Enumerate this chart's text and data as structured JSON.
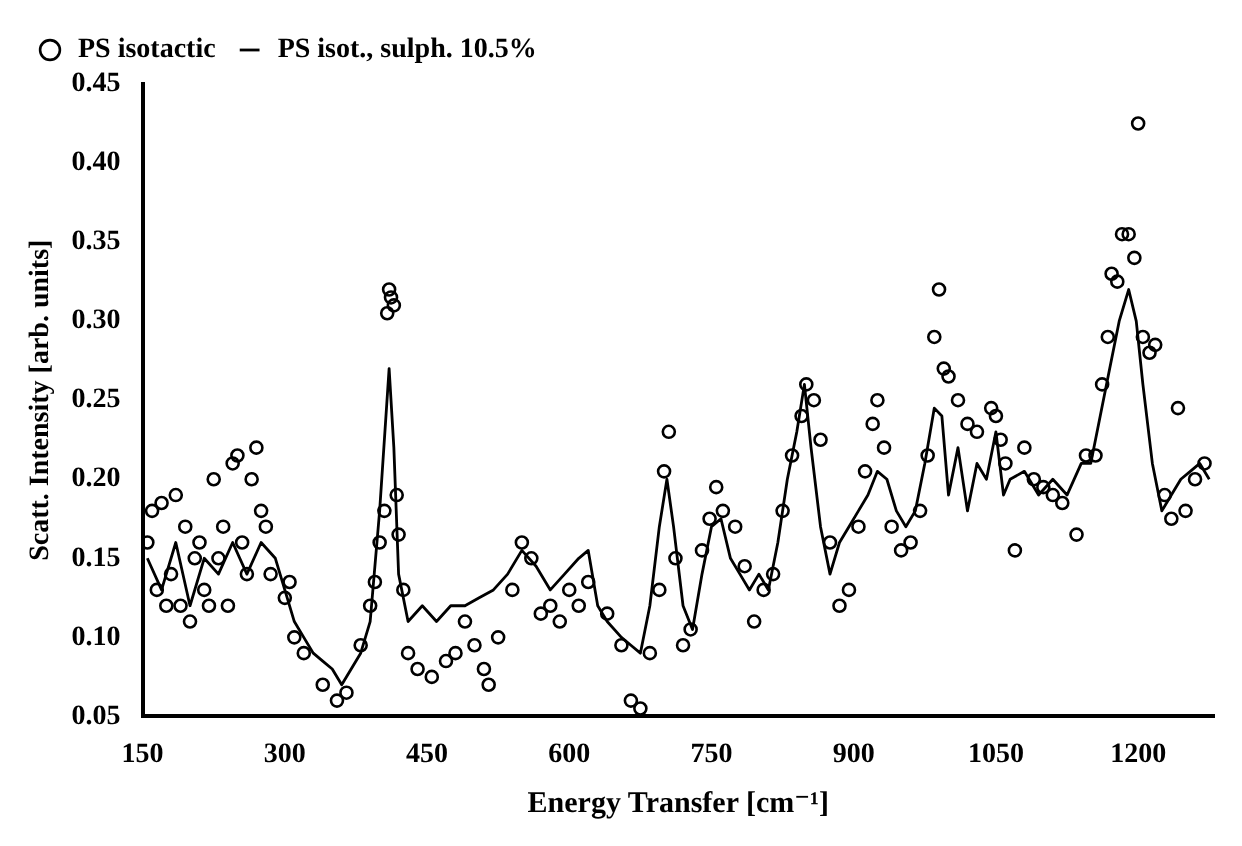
{
  "chart_data": {
    "type": "scatter",
    "xlabel": "Energy Transfer [cm⁻¹]",
    "ylabel": "Scatt. Intensity [arb. units]",
    "xlim": [
      150,
      1280
    ],
    "xticks": [
      150,
      300,
      450,
      600,
      750,
      900,
      1050,
      1200
    ],
    "ylim": [
      0.05,
      0.45
    ],
    "yticks": [
      0.05,
      {
        "value": 0.1,
        "label": "0.10"
      },
      0.15,
      {
        "value": 0.2,
        "label": "0.20"
      },
      0.25,
      {
        "value": 0.3,
        "label": "0.30"
      },
      0.35,
      {
        "value": 0.4,
        "label": "0.40"
      },
      0.45
    ],
    "legend": "top left",
    "grid": false,
    "series": [
      {
        "name": "PS isotactic",
        "marker": "circle",
        "color": "#000000",
        "x": [
          155,
          160,
          165,
          170,
          175,
          180,
          185,
          190,
          195,
          200,
          205,
          210,
          215,
          220,
          225,
          230,
          235,
          240,
          245,
          250,
          255,
          260,
          265,
          270,
          275,
          280,
          285,
          300,
          305,
          310,
          320,
          340,
          355,
          365,
          380,
          390,
          395,
          400,
          405,
          408,
          410,
          412,
          415,
          418,
          420,
          425,
          430,
          440,
          455,
          470,
          480,
          490,
          500,
          510,
          515,
          525,
          540,
          550,
          560,
          570,
          580,
          590,
          600,
          610,
          620,
          640,
          655,
          665,
          675,
          685,
          695,
          700,
          705,
          712,
          720,
          728,
          740,
          748,
          755,
          762,
          775,
          785,
          795,
          805,
          815,
          825,
          835,
          845,
          850,
          858,
          865,
          875,
          885,
          895,
          905,
          912,
          920,
          925,
          932,
          940,
          950,
          960,
          970,
          978,
          985,
          990,
          995,
          1000,
          1010,
          1020,
          1030,
          1045,
          1050,
          1055,
          1060,
          1070,
          1080,
          1090,
          1100,
          1110,
          1120,
          1135,
          1145,
          1155,
          1162,
          1168,
          1172,
          1178,
          1183,
          1190,
          1196,
          1200,
          1205,
          1212,
          1218,
          1228,
          1235,
          1242,
          1250,
          1260,
          1270
        ],
        "values": [
          0.16,
          0.18,
          0.13,
          0.185,
          0.12,
          0.14,
          0.19,
          0.12,
          0.17,
          0.11,
          0.15,
          0.16,
          0.13,
          0.12,
          0.2,
          0.15,
          0.17,
          0.12,
          0.21,
          0.215,
          0.16,
          0.14,
          0.2,
          0.22,
          0.18,
          0.17,
          0.14,
          0.125,
          0.135,
          0.1,
          0.09,
          0.07,
          0.06,
          0.065,
          0.095,
          0.12,
          0.135,
          0.16,
          0.18,
          0.305,
          0.32,
          0.315,
          0.31,
          0.19,
          0.165,
          0.13,
          0.09,
          0.08,
          0.075,
          0.085,
          0.09,
          0.11,
          0.095,
          0.08,
          0.07,
          0.1,
          0.13,
          0.16,
          0.15,
          0.115,
          0.12,
          0.11,
          0.13,
          0.12,
          0.135,
          0.115,
          0.095,
          0.06,
          0.055,
          0.09,
          0.13,
          0.205,
          0.23,
          0.15,
          0.095,
          0.105,
          0.155,
          0.175,
          0.195,
          0.18,
          0.17,
          0.145,
          0.11,
          0.13,
          0.14,
          0.18,
          0.215,
          0.24,
          0.26,
          0.25,
          0.225,
          0.16,
          0.12,
          0.13,
          0.17,
          0.205,
          0.235,
          0.25,
          0.22,
          0.17,
          0.155,
          0.16,
          0.18,
          0.215,
          0.29,
          0.32,
          0.27,
          0.265,
          0.25,
          0.235,
          0.23,
          0.245,
          0.24,
          0.225,
          0.21,
          0.155,
          0.22,
          0.2,
          0.195,
          0.19,
          0.185,
          0.165,
          0.215,
          0.215,
          0.26,
          0.29,
          0.33,
          0.325,
          0.355,
          0.355,
          0.34,
          0.425,
          0.29,
          0.28,
          0.285,
          0.19,
          0.175,
          0.245,
          0.18,
          0.2,
          0.21
        ]
      },
      {
        "name": "PS isot., sulph. 10.5%",
        "type": "line",
        "marker": "none",
        "line_style": "solid",
        "color": "#000000",
        "x": [
          155,
          170,
          185,
          200,
          215,
          230,
          245,
          260,
          275,
          290,
          300,
          310,
          320,
          330,
          340,
          350,
          360,
          370,
          380,
          390,
          400,
          410,
          415,
          420,
          430,
          445,
          460,
          475,
          490,
          505,
          520,
          535,
          550,
          565,
          580,
          595,
          610,
          620,
          630,
          640,
          655,
          665,
          675,
          685,
          695,
          703,
          710,
          720,
          730,
          740,
          750,
          760,
          770,
          780,
          790,
          800,
          810,
          820,
          830,
          840,
          848,
          855,
          865,
          875,
          885,
          895,
          905,
          915,
          925,
          935,
          945,
          955,
          965,
          975,
          985,
          993,
          1000,
          1010,
          1020,
          1030,
          1040,
          1050,
          1058,
          1065,
          1080,
          1095,
          1110,
          1125,
          1140,
          1150,
          1160,
          1170,
          1180,
          1190,
          1198,
          1205,
          1215,
          1225,
          1235,
          1245,
          1255,
          1265,
          1275
        ],
        "values": [
          0.15,
          0.13,
          0.16,
          0.12,
          0.15,
          0.14,
          0.16,
          0.14,
          0.16,
          0.15,
          0.13,
          0.11,
          0.1,
          0.09,
          0.085,
          0.08,
          0.07,
          0.08,
          0.09,
          0.11,
          0.18,
          0.27,
          0.22,
          0.14,
          0.11,
          0.12,
          0.11,
          0.12,
          0.12,
          0.125,
          0.13,
          0.14,
          0.155,
          0.145,
          0.13,
          0.14,
          0.15,
          0.155,
          0.12,
          0.11,
          0.1,
          0.095,
          0.09,
          0.12,
          0.17,
          0.2,
          0.17,
          0.12,
          0.105,
          0.14,
          0.17,
          0.175,
          0.15,
          0.14,
          0.13,
          0.14,
          0.13,
          0.16,
          0.2,
          0.23,
          0.26,
          0.22,
          0.17,
          0.14,
          0.16,
          0.17,
          0.18,
          0.19,
          0.205,
          0.2,
          0.18,
          0.17,
          0.18,
          0.21,
          0.245,
          0.24,
          0.19,
          0.22,
          0.18,
          0.21,
          0.2,
          0.23,
          0.19,
          0.2,
          0.205,
          0.19,
          0.2,
          0.19,
          0.21,
          0.21,
          0.24,
          0.27,
          0.3,
          0.32,
          0.3,
          0.26,
          0.21,
          0.18,
          0.19,
          0.2,
          0.205,
          0.21,
          0.2
        ]
      }
    ]
  }
}
